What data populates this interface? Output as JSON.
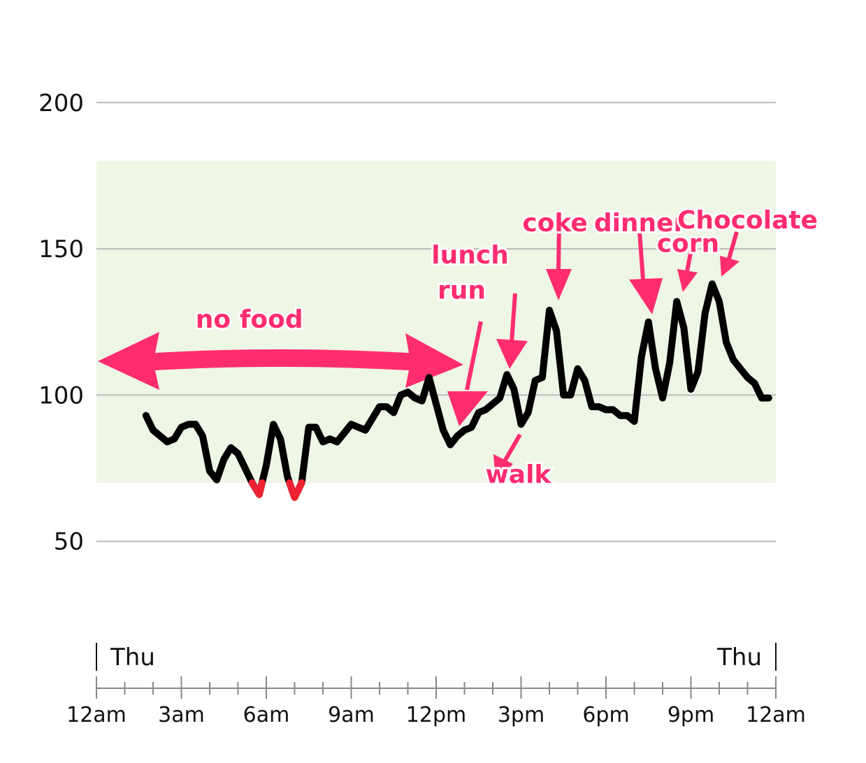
{
  "chart_data": {
    "type": "line",
    "xlabel": "",
    "ylabel": "",
    "xlim": [
      0,
      24
    ],
    "ylim": [
      0,
      232
    ],
    "yticks": [
      {
        "value": 200,
        "label": "200"
      },
      {
        "value": 150,
        "label": "150"
      },
      {
        "value": 100,
        "label": "100"
      },
      {
        "value": 50,
        "label": "50"
      }
    ],
    "xticks_major": [
      {
        "value": 0,
        "label": "12am"
      },
      {
        "value": 3,
        "label": "3am"
      },
      {
        "value": 6,
        "label": "6am"
      },
      {
        "value": 9,
        "label": "9am"
      },
      {
        "value": 12,
        "label": "12pm"
      },
      {
        "value": 15,
        "label": "3pm"
      },
      {
        "value": 18,
        "label": "6pm"
      },
      {
        "value": 21,
        "label": "9pm"
      },
      {
        "value": 24,
        "label": "12am"
      }
    ],
    "xticks_minor": [
      1,
      2,
      4,
      5,
      7,
      8,
      10,
      11,
      13,
      14,
      16,
      17,
      19,
      20,
      22,
      23
    ],
    "day_labels": [
      {
        "value": 0,
        "label": "Thu",
        "side": "right"
      },
      {
        "value": 24,
        "label": "Thu",
        "side": "left"
      }
    ],
    "target_range": {
      "low": 70,
      "high": 180,
      "color": "#eef6e6"
    },
    "grid": true,
    "colors": {
      "line": "#000000",
      "low": "#ee2233",
      "annotation": "#ff2d6f",
      "grid": "#bbbbbb"
    },
    "low_threshold": 70,
    "series": [
      {
        "x": [
          1.75,
          2.0,
          2.5,
          2.75,
          3.0,
          3.25,
          3.5,
          3.75,
          4.0,
          4.25,
          4.5,
          4.75,
          5.0,
          5.5,
          5.75,
          6.0,
          6.25,
          6.5,
          6.75,
          7.0,
          7.25,
          7.5,
          7.75,
          8.0,
          8.25,
          8.5,
          8.75,
          9.0,
          9.5,
          9.75,
          10.0,
          10.25,
          10.5,
          10.75,
          11.0,
          11.25,
          11.5,
          11.75,
          12.0,
          12.25,
          12.5,
          12.75,
          13.0,
          13.25,
          13.5,
          13.75,
          14.0,
          14.25,
          14.5,
          14.75,
          15.0,
          15.25,
          15.5,
          15.75,
          16.0,
          16.25,
          16.5,
          16.75,
          17.0,
          17.25,
          17.5,
          17.75,
          18.0,
          18.25,
          18.5,
          18.75,
          19.0,
          19.25,
          19.5,
          19.75,
          20.0,
          20.25,
          20.5,
          20.75,
          21.0,
          21.25,
          21.5,
          21.75,
          22.0,
          22.25,
          22.5,
          22.75,
          23.0,
          23.25,
          23.5,
          23.75
        ],
        "y": [
          93,
          88,
          84,
          85,
          89,
          90,
          90,
          86,
          74,
          71,
          78,
          82,
          80,
          70,
          66,
          76,
          90,
          85,
          72,
          65,
          70,
          89,
          89,
          84,
          85,
          84,
          87,
          90,
          88,
          92,
          96,
          96,
          94,
          100,
          101,
          99,
          98,
          106,
          97,
          88,
          83,
          86,
          88,
          89,
          94,
          95,
          97,
          99,
          107,
          102,
          90,
          94,
          105,
          106,
          129,
          122,
          100,
          100,
          109,
          105,
          96,
          96,
          95,
          95,
          93,
          93,
          91,
          113,
          125,
          109,
          99,
          111,
          132,
          123,
          102,
          108,
          128,
          138,
          132,
          118,
          112,
          109,
          106,
          104,
          99,
          99
        ]
      }
    ],
    "annotations": [
      {
        "text": "no food",
        "x": 5.4,
        "y": 123
      },
      {
        "text": "lunch",
        "x": 13.2,
        "y": 145
      },
      {
        "text": "run",
        "x": 12.9,
        "y": 133
      },
      {
        "text": "walk",
        "x": 14.9,
        "y": 70
      },
      {
        "text": "coke",
        "x": 16.2,
        "y": 156
      },
      {
        "text": "dinner",
        "x": 19.2,
        "y": 156
      },
      {
        "text": "corn",
        "x": 20.9,
        "y": 149
      },
      {
        "text": "Chocolate",
        "x": 23.0,
        "y": 157
      }
    ]
  }
}
